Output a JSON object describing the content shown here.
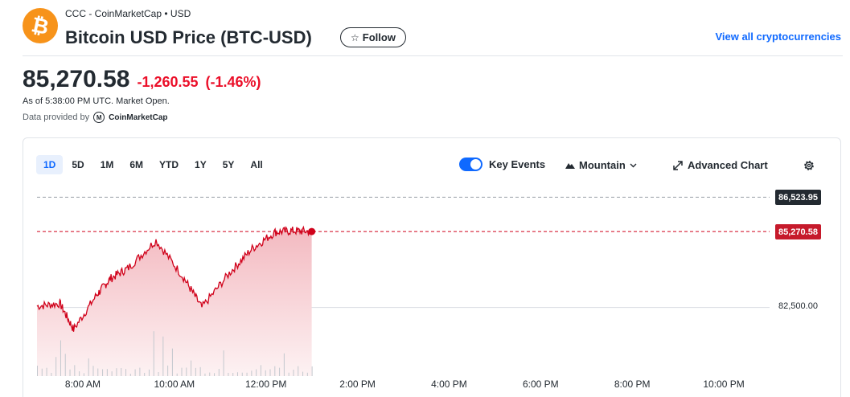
{
  "header": {
    "source": "CCC - CoinMarketCap • USD",
    "title": "Bitcoin USD Price (BTC-USD)",
    "follow_label": "Follow",
    "view_all_label": "View all cryptocurrencies"
  },
  "quote": {
    "price": "85,270.58",
    "change": "-1,260.55",
    "change_pct": "(-1.46%)",
    "as_of": "As of 5:38:00 PM UTC. Market Open.",
    "provided_by": "Data provided by",
    "provider_name": "CoinMarketCap"
  },
  "chart_controls": {
    "ranges": [
      "1D",
      "5D",
      "1M",
      "6M",
      "YTD",
      "1Y",
      "5Y",
      "All"
    ],
    "active_range": "1D",
    "key_events_label": "Key Events",
    "key_events_on": true,
    "chart_type_label": "Mountain",
    "advanced_label": "Advanced Chart"
  },
  "colors": {
    "accent": "#0f69ff",
    "negative": "#eb0f29",
    "line": "#d0021b",
    "fill": "#f9dde0",
    "btc_orange": "#f7931a"
  },
  "icons": {
    "logo": "bitcoin-icon",
    "follow": "star-icon",
    "mountain": "mountain-icon",
    "chevron": "chevron-down-icon",
    "advanced": "expand-arrows-icon",
    "settings": "gear-icon"
  },
  "chart_data": {
    "type": "area",
    "x_ticks": [
      "8:00 AM",
      "10:00 AM",
      "12:00 PM",
      "2:00 PM",
      "4:00 PM",
      "6:00 PM",
      "8:00 PM",
      "10:00 PM"
    ],
    "x_hours": [
      7.0,
      7.5,
      7.8,
      8.3,
      8.6,
      9.0,
      9.6,
      10.2,
      10.6,
      11.2,
      11.7,
      12.2,
      12.6,
      13.0
    ],
    "y": [
      82550,
      82650,
      81700,
      82950,
      83550,
      83950,
      84950,
      83600,
      82500,
      83750,
      84650,
      85250,
      85300,
      85270.58
    ],
    "x_start": "7:00 AM",
    "x_end": "11:00 PM",
    "y_labels": {
      "high": "86,523.95",
      "last": "85,270.58",
      "grid": "82,500.00"
    },
    "ref_lines": {
      "previous_close": 86523.95,
      "last": 85270.58,
      "grid": 82500.0
    },
    "ylim": [
      80000,
      87500
    ],
    "grid": true,
    "volume_bars": true
  }
}
